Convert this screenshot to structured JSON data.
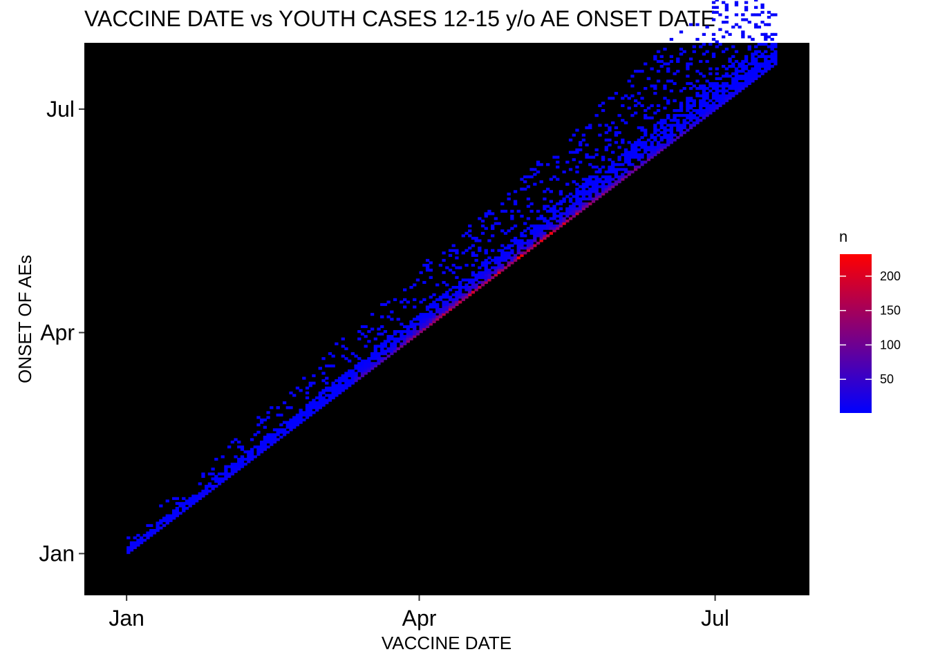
{
  "chart_data": {
    "type": "heatmap",
    "title": "VACCINE DATE vs YOUTH CASES 12-15 y/o AE ONSET DATE",
    "xlabel": "VACCINE DATE",
    "ylabel": "ONSET OF AEs",
    "x_ticks": [
      "Jan",
      "Apr",
      "Jul"
    ],
    "y_ticks": [
      "Jan",
      "Apr",
      "Jul"
    ],
    "xlim": [
      "2020-12-19",
      "2021-07-30"
    ],
    "ylim": [
      "2020-12-15",
      "2021-07-28"
    ],
    "grid": false,
    "background": "#000000",
    "legend": {
      "title": "n",
      "position": "right",
      "breaks": [
        50,
        100,
        150,
        200
      ],
      "range": [
        1,
        232
      ],
      "low_color": "#0000FF",
      "high_color": "#FF0000"
    },
    "colors": {
      "low": "#0000FF",
      "high": "#FF0000",
      "panel": "#000000"
    },
    "description_of_data": "Daily bins of vaccine date (x) vs AE onset date (y); counts concentrated on the diagonal where onset = vaccine date, highest (~230) around April–May, with sparse low-count cells above the diagonal.",
    "diagonal": {
      "start": "2021-01-01",
      "end": "2021-07-19",
      "peak_value": 232,
      "peak_date": "2021-05-01"
    }
  }
}
